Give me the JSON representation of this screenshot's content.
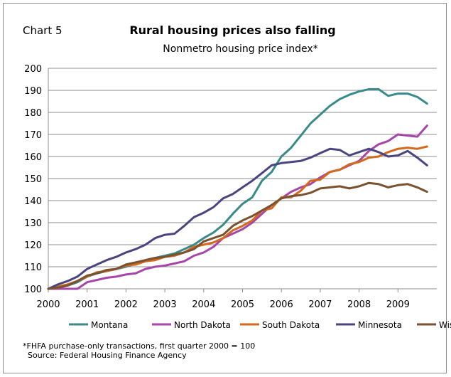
{
  "chart_label": "Chart 5",
  "footnote": "*FHFA purchase-only transactions, first quarter 2000 = 100",
  "source": "Source: Federal Housing Finance Agency",
  "chart_data": {
    "type": "line",
    "title": "Rural housing prices also falling",
    "subtitle": "Nonmetro housing price index*",
    "xlabel": "",
    "ylabel": "",
    "ylim": [
      100,
      200
    ],
    "yticks": [
      100,
      110,
      120,
      130,
      140,
      150,
      160,
      170,
      180,
      190,
      200
    ],
    "xlim": [
      2000,
      2010
    ],
    "xticks": [
      "2000",
      "2001",
      "2002",
      "2003",
      "2004",
      "2005",
      "2006",
      "2007",
      "2008",
      "2009"
    ],
    "grid": "horizontal",
    "legend_position": "bottom",
    "x": [
      "2000 Q1",
      "2000 Q2",
      "2000 Q3",
      "2000 Q4",
      "2001 Q1",
      "2001 Q2",
      "2001 Q3",
      "2001 Q4",
      "2002 Q1",
      "2002 Q2",
      "2002 Q3",
      "2002 Q4",
      "2003 Q1",
      "2003 Q2",
      "2003 Q3",
      "2003 Q4",
      "2004 Q1",
      "2004 Q2",
      "2004 Q3",
      "2004 Q4",
      "2005 Q1",
      "2005 Q2",
      "2005 Q3",
      "2005 Q4",
      "2006 Q1",
      "2006 Q2",
      "2006 Q3",
      "2006 Q4",
      "2007 Q1",
      "2007 Q2",
      "2007 Q3",
      "2007 Q4",
      "2008 Q1",
      "2008 Q2",
      "2008 Q3",
      "2008 Q4",
      "2009 Q1",
      "2009 Q2",
      "2009 Q3",
      "2009 Q4"
    ],
    "series": [
      {
        "name": "Montana",
        "color": "#3a8a8a",
        "values": [
          100,
          100.5,
          101.5,
          103,
          105.5,
          107,
          108,
          109,
          110,
          111.5,
          113,
          114,
          115,
          116,
          118,
          120,
          123,
          125.5,
          129,
          134,
          138.5,
          141.5,
          149,
          153,
          160,
          164,
          169.5,
          175,
          179,
          183,
          186,
          188,
          189.5,
          190.5,
          190.5,
          187.5,
          188.5,
          188.5,
          187,
          184
        ]
      },
      {
        "name": "North Dakota",
        "color": "#a845a8",
        "values": [
          98,
          97,
          98,
          99,
          103,
          104,
          105,
          105.5,
          106.5,
          107,
          109,
          110,
          110.5,
          111.5,
          112.5,
          115,
          116.5,
          119,
          123,
          125,
          127,
          130,
          134,
          138,
          141,
          144,
          146,
          147.5,
          150.5,
          153,
          154,
          156,
          158,
          162.5,
          165.5,
          167,
          170,
          169.5,
          169,
          174
        ]
      },
      {
        "name": "South Dakota",
        "color": "#d2691e",
        "values": [
          100,
          101,
          102,
          103.5,
          105.5,
          107.5,
          108,
          109,
          110.5,
          111,
          112.5,
          113,
          114.5,
          115,
          116.5,
          119,
          120,
          121,
          123,
          126.5,
          128.5,
          131,
          135.5,
          136.5,
          141.5,
          141.5,
          144.5,
          149,
          149.5,
          153,
          154,
          156.5,
          157.5,
          159.5,
          160,
          162,
          163.5,
          164,
          163.5,
          164.5
        ]
      },
      {
        "name": "Minnesota",
        "color": "#4a4580",
        "values": [
          100,
          102,
          103.5,
          105.5,
          109,
          111,
          113,
          114.5,
          116.5,
          118,
          120,
          123,
          124.5,
          125,
          128.5,
          132.5,
          134.5,
          137,
          141,
          143,
          146,
          149,
          152.5,
          156,
          157,
          157.5,
          158,
          159.5,
          161.5,
          163.5,
          163,
          160.5,
          162,
          163.5,
          162,
          160,
          160.5,
          162.5,
          159.5,
          156
        ]
      },
      {
        "name": "Wisconsin",
        "color": "#7a5230",
        "values": [
          100,
          100.5,
          101.5,
          103.5,
          106,
          107,
          108.5,
          109,
          111,
          112,
          113,
          114,
          114.5,
          115.5,
          116.5,
          118,
          121.5,
          123,
          124.5,
          128.5,
          131,
          133,
          135.5,
          138,
          141,
          142,
          142.5,
          143.5,
          145.5,
          146,
          146.5,
          145.5,
          146.5,
          148,
          147.5,
          146,
          147,
          147.5,
          146,
          144
        ]
      }
    ]
  }
}
